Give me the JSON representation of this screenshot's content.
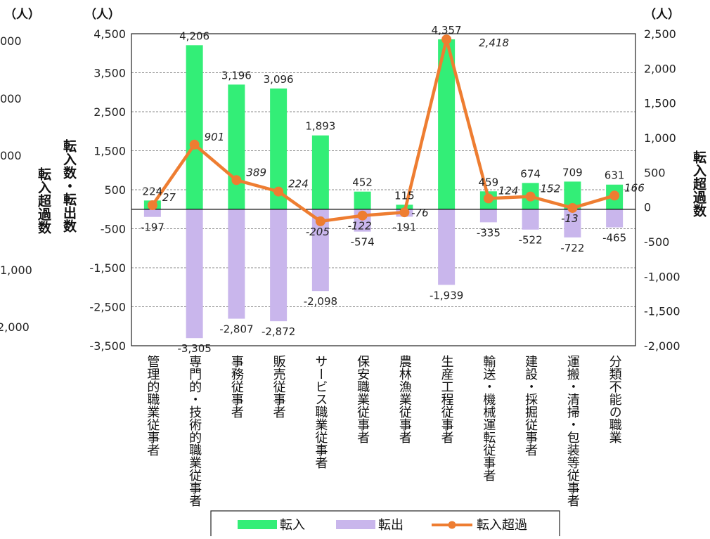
{
  "chart_data": {
    "type": "bar",
    "categories": [
      "管理的職業従事者",
      "専門的・技術的職業従事者",
      "事務従事者",
      "販売従事者",
      "サービス職業従事者",
      "保安職業従事者",
      "農林漁業従事者",
      "生産工程従事者",
      "輸送・機械運転従事者",
      "建設・採掘従事者",
      "運搬・清掃・包装等従事者",
      "分類不能の職業"
    ],
    "series": [
      {
        "name": "転入",
        "type": "bar",
        "axis": "left",
        "color": "#33ee77",
        "values": [
          224,
          4206,
          3196,
          3096,
          1893,
          452,
          115,
          4357,
          459,
          674,
          709,
          631
        ],
        "labels": [
          "224",
          "4,206",
          "3,196",
          "3,096",
          "1,893",
          "452",
          "115",
          "4,357",
          "459",
          "674",
          "709",
          "631"
        ]
      },
      {
        "name": "転出",
        "type": "bar",
        "axis": "left",
        "color": "#c9b6ec",
        "values": [
          -197,
          -3305,
          -2807,
          -2872,
          -2098,
          -574,
          -191,
          -1939,
          -335,
          -522,
          -722,
          -465
        ],
        "labels": [
          "-197",
          "-3,305",
          "-2,807",
          "-2,872",
          "-2,098",
          "-574",
          "-191",
          "-1,939",
          "-335",
          "-522",
          "-722",
          "-465"
        ]
      },
      {
        "name": "転入超過",
        "type": "line",
        "axis": "right",
        "color": "#ee7d31",
        "values": [
          27,
          901,
          389,
          224,
          -205,
          -122,
          -76,
          2418,
          124,
          152,
          -13,
          166
        ],
        "labels": [
          "27",
          "901",
          "389",
          "224",
          "-205",
          "-122",
          "-76",
          "2,418",
          "124",
          "152",
          "-13",
          "166"
        ]
      }
    ],
    "left_axis": {
      "unit": "（人）",
      "label": "転入数・転出数",
      "ylim": [
        -3500,
        4500
      ],
      "ticks": [
        -3500,
        -2500,
        -1500,
        -500,
        500,
        1500,
        2500,
        3500,
        4500
      ],
      "tick_labels": [
        "-3,500",
        "-2,500",
        "-1,500",
        "-500",
        "500",
        "1,500",
        "2,500",
        "3,500",
        "4,500"
      ]
    },
    "right_axis": {
      "unit": "（人）",
      "label": "転入超過数",
      "ylim": [
        -2000,
        2500
      ],
      "ticks": [
        -2000,
        -1500,
        -1000,
        -500,
        0,
        500,
        1000,
        1500,
        2000,
        2500
      ],
      "tick_labels": [
        "-2,000",
        "-1,500",
        "-1,000",
        "-500",
        "0",
        "500",
        "1,000",
        "1,500",
        "2,000",
        "2,500"
      ]
    },
    "cut_axis": {
      "unit": "（人）",
      "label": "転入超過数",
      "tick_labels": [
        "000",
        "000",
        "000",
        "1,000",
        "2,000"
      ]
    },
    "legend": {
      "position": "bottom",
      "entries": [
        "転入",
        "転出",
        "転入超過"
      ]
    },
    "grid": true
  }
}
